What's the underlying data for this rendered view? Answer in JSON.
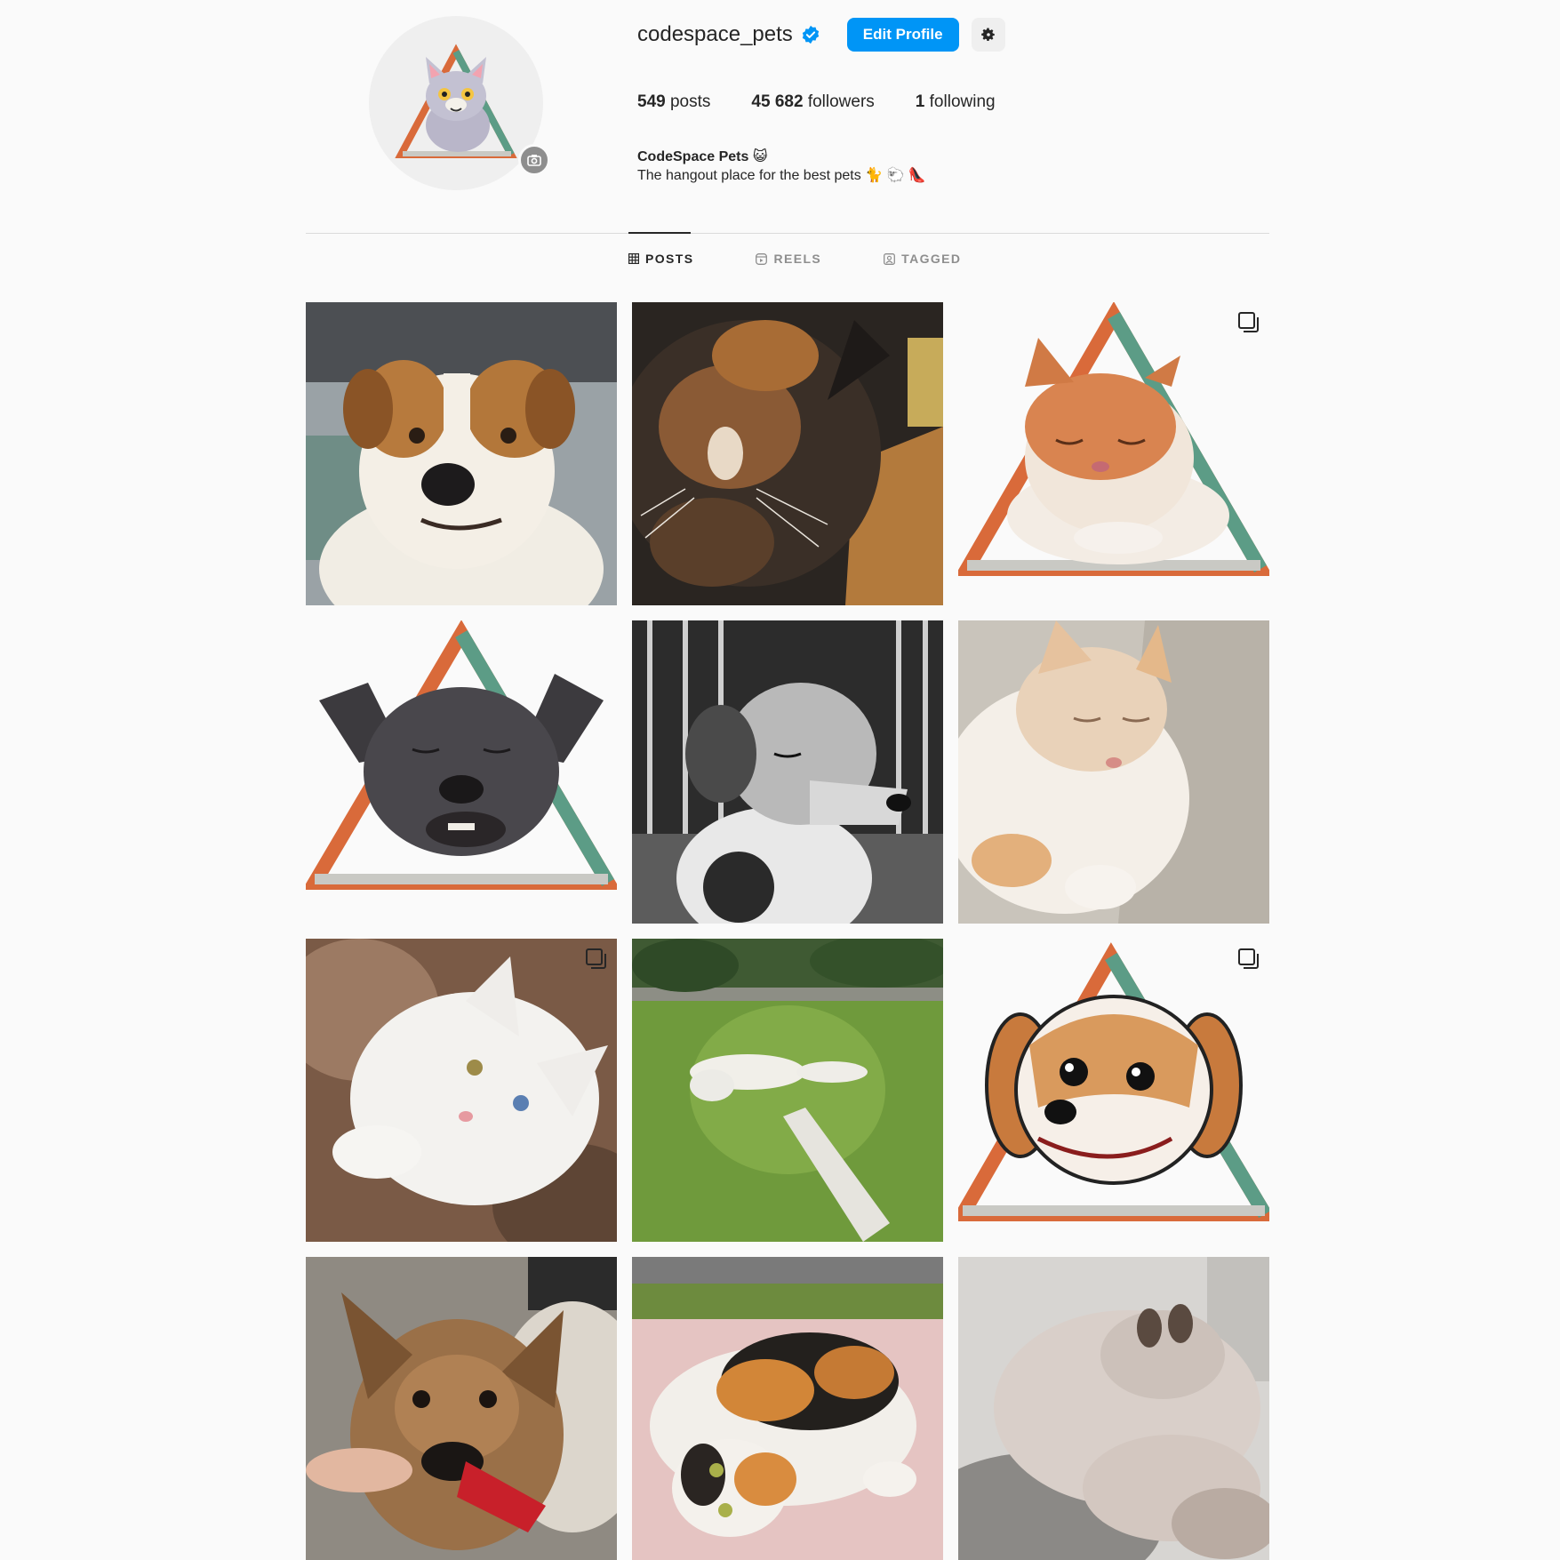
{
  "profile": {
    "username": "codespace_pets",
    "verified": true,
    "edit_button": "Edit Profile",
    "settings_icon": "gear-icon",
    "stats": {
      "posts_count": "549",
      "posts_label": "posts",
      "followers_count": "45 682",
      "followers_label": "followers",
      "following_count": "1",
      "following_label": "following"
    },
    "bio_name": "CodeSpace Pets 😺",
    "bio_text": "The hangout place for the best pets 🐈 🐑 👠"
  },
  "tabs": [
    {
      "label": "POSTS",
      "icon": "grid-icon",
      "active": true
    },
    {
      "label": "REELS",
      "icon": "reels-icon",
      "active": false
    },
    {
      "label": "TAGGED",
      "icon": "tagged-icon",
      "active": false
    }
  ],
  "posts": [
    {
      "subject": "brown-white-puppy-photo",
      "multi": false
    },
    {
      "subject": "tortoiseshell-cat-photo",
      "multi": false
    },
    {
      "subject": "ginger-cat-triangle-logo",
      "multi": true
    },
    {
      "subject": "grey-dog-triangle-logo",
      "multi": false
    },
    {
      "subject": "black-white-dog-photo",
      "multi": false
    },
    {
      "subject": "sleeping-white-ginger-cat-photo",
      "multi": false
    },
    {
      "subject": "white-odd-eyed-cat-photo",
      "multi": true
    },
    {
      "subject": "cat-on-grass-photo",
      "multi": false
    },
    {
      "subject": "cartoon-beagle-triangle-logo",
      "multi": true
    },
    {
      "subject": "german-shepherd-dog-photo",
      "multi": false
    },
    {
      "subject": "calico-cat-lying-photo",
      "multi": false
    },
    {
      "subject": "fluffy-cat-on-back-photo",
      "multi": false
    }
  ],
  "colors": {
    "accent": "#0095f6",
    "triangle_orange": "#d96a3a",
    "triangle_green": "#5c9c86",
    "triangle_base": "#c9c9c4"
  }
}
